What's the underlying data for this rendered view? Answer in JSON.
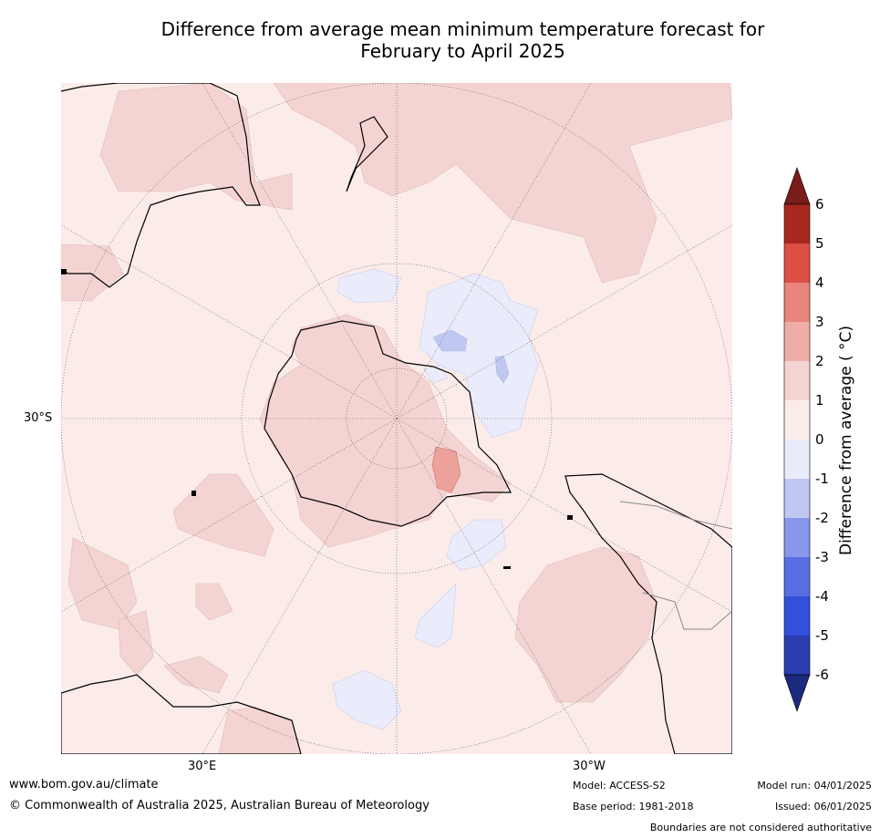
{
  "title_line1": "Difference from average mean minimum temperature forecast for",
  "title_line2": "February to April 2025",
  "lat_label": "30°S",
  "lon_labels": {
    "east": "30°E",
    "west": "30°W"
  },
  "colorbar": {
    "title": "Difference from average ( °C)",
    "ticks": [
      "6",
      "5",
      "4",
      "3",
      "2",
      "1",
      "0",
      "-1",
      "-2",
      "-3",
      "-4",
      "-5",
      "-6"
    ],
    "colors": [
      "#7a1c18",
      "#a8281f",
      "#c63a2e",
      "#db4f44",
      "#e8857c",
      "#edaea7",
      "#f4d4d2",
      "#fbecea",
      "#eaecfb",
      "#c0c8f2",
      "#8896ec",
      "#5a6ee4",
      "#3350dc",
      "#2a3cb0",
      "#1c2a7e"
    ]
  },
  "footer": {
    "website": "www.bom.gov.au/climate",
    "copyright": "© Commonwealth of Australia 2025, Australian Bureau of Meteorology",
    "model": "Model: ACCESS-S2",
    "base_period": "Base period: 1981-2018",
    "model_run": "Model run: 04/01/2025",
    "issued": "Issued: 06/01/2025",
    "disclaimer": "Boundaries are not considered authoritative"
  }
}
